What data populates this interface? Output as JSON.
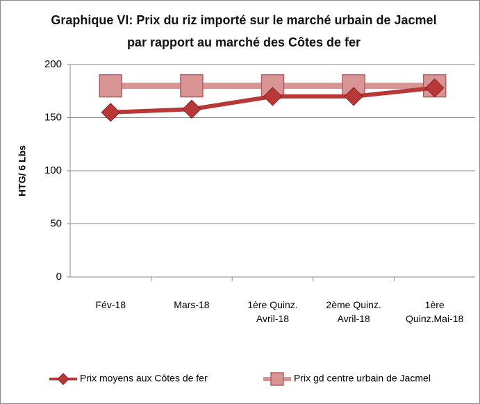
{
  "chart_data": {
    "type": "line",
    "title": "Graphique VI: Prix du riz importé sur le marché urbain de Jacmel par rapport au marché des Côtes de fer",
    "y_label": "HTG/ 6 Lbs",
    "categories": [
      "Fév-18",
      "Mars-18",
      "1ère Quinz. Avril-18",
      "2ème Quinz. Avril-18",
      "1ère Quinz.Mai-18"
    ],
    "series": [
      {
        "name": "Prix moyens aux Côtes de fer",
        "color": "#b83838",
        "marker": "diamond",
        "values": [
          155,
          158,
          170,
          170,
          178
        ]
      },
      {
        "name": "Prix gd centre urbain de Jacmel",
        "color": "#d99594",
        "marker": "square",
        "values": [
          180,
          180,
          180,
          180,
          180
        ]
      }
    ],
    "ylim": [
      0,
      200
    ],
    "yticks": [
      0,
      50,
      100,
      150,
      200
    ],
    "grid": true,
    "legend": "bottom"
  }
}
